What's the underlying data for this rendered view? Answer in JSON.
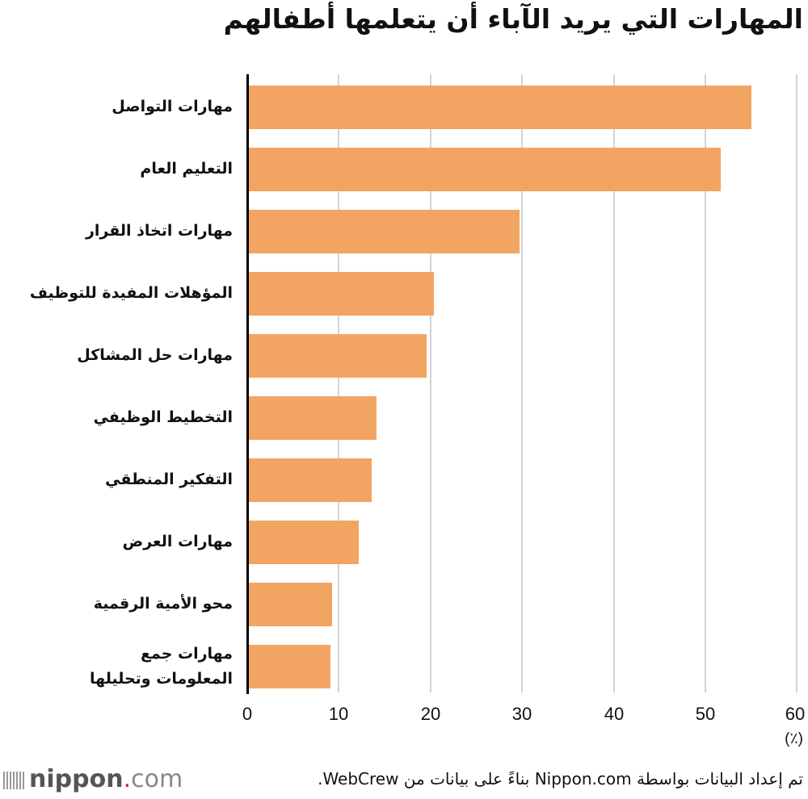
{
  "chart_data": {
    "type": "bar",
    "orientation": "horizontal",
    "title": "المهارات التي يريد الآباء أن يتعلمها أطفالهم",
    "categories": [
      "مهارات التواصل",
      "التعليم العام",
      "مهارات اتخاذ القرار",
      "المؤهلات المفيدة للتوظيف",
      "مهارات حل المشاكل",
      "التخطيط الوظيفي",
      "التفكير المنطقي",
      "مهارات العرض",
      "محو الأمية الرقمية",
      "مهارات جمع المعلومات وتحليلها"
    ],
    "values": [
      55.1,
      51.7,
      29.7,
      20.4,
      19.6,
      14.1,
      13.6,
      12.2,
      9.3,
      9.1
    ],
    "xlabel": "(٪)",
    "ylabel": "",
    "xlim": [
      0,
      60
    ],
    "xticks": [
      "0",
      "10",
      "20",
      "30",
      "40",
      "50",
      "60"
    ],
    "grid": true,
    "bar_color": "#f2a462",
    "legend": null
  },
  "labels": {
    "l0": "مهارات التواصل",
    "l1": "التعليم العام",
    "l2": "مهارات اتخاذ القرار",
    "l3": "المؤهلات المفيدة للتوظيف",
    "l4": "مهارات حل المشاكل",
    "l5": "التخطيط الوظيفي",
    "l6": "التفكير المنطقي",
    "l7": "مهارات العرض",
    "l8": "محو الأمية الرقمية",
    "l9a": "مهارات جمع",
    "l9b": "المعلومات وتحليلها"
  },
  "footer": {
    "source": "تم إعداد البيانات بواسطة Nippon.com بناءً على بيانات من WebCrew.",
    "logo_main": "nippon",
    "logo_dot": ".",
    "logo_suffix": "com"
  }
}
